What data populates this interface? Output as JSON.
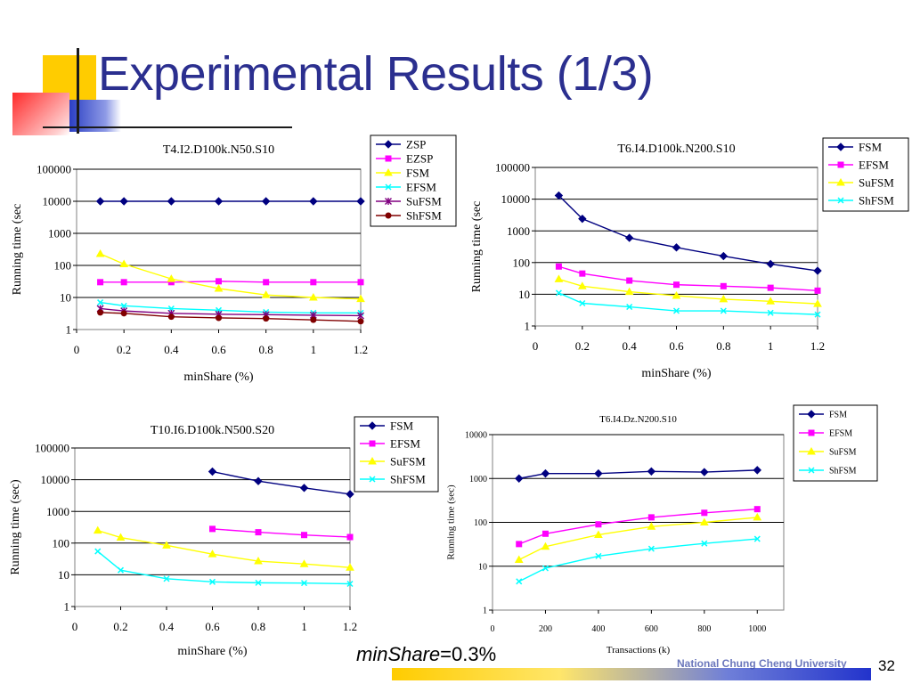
{
  "slide": {
    "title": "Experimental Results (1/3)",
    "caption_italic": "minShare",
    "caption_rest": "=0.3%",
    "page_number": "32",
    "footer_text": "National Chung Cheng University"
  },
  "colors": {
    "title": "#2b2f8f",
    "ZSP": "#000080",
    "EZSP": "#ff00ff",
    "FSM_yellow": "#ffff00",
    "EFSM_cyan": "#00ffff",
    "SuFSM": "#800080",
    "ShFSM": "#800000"
  },
  "chart_data": [
    {
      "type": "line",
      "title": "T4.I2.D100k.N50.S10",
      "xlabel": "minShare (%)",
      "ylabel": "Running time (sec",
      "yscale": "log",
      "xlim": [
        0,
        1.2
      ],
      "ylim": [
        1,
        100000
      ],
      "xticks": [
        "0",
        "0.2",
        "0.4",
        "0.6",
        "0.8",
        "1",
        "1.2"
      ],
      "yticks": [
        "1",
        "10",
        "100",
        "1000",
        "10000",
        "100000"
      ],
      "grid": "horizontal",
      "legend": "top-right",
      "x": [
        0.1,
        0.2,
        0.4,
        0.6,
        0.8,
        1.0,
        1.2
      ],
      "series": [
        {
          "name": "ZSP",
          "color": "#000080",
          "marker": "diamond",
          "values": [
            10000,
            10000,
            10000,
            10000,
            10000,
            10000,
            10000
          ]
        },
        {
          "name": "EZSP",
          "color": "#ff00ff",
          "marker": "square",
          "values": [
            30,
            30,
            30,
            32,
            30,
            30,
            30
          ]
        },
        {
          "name": "FSM",
          "color": "#ffff00",
          "marker": "triangle",
          "values": [
            230,
            110,
            38,
            19,
            12,
            10,
            9
          ]
        },
        {
          "name": "EFSM",
          "color": "#00ffff",
          "marker": "x",
          "values": [
            7,
            5.5,
            4.5,
            4,
            3.5,
            3.3,
            3.3
          ]
        },
        {
          "name": "SuFSM",
          "color": "#800080",
          "marker": "star",
          "values": [
            4.5,
            3.8,
            3.2,
            3,
            2.9,
            2.8,
            2.7
          ]
        },
        {
          "name": "ShFSM",
          "color": "#800000",
          "marker": "circle",
          "values": [
            3.4,
            3.2,
            2.5,
            2.3,
            2.2,
            2.0,
            1.8
          ]
        }
      ]
    },
    {
      "type": "line",
      "title": "T6.I4.D100k.N200.S10",
      "xlabel": "minShare (%)",
      "ylabel": "Running time (sec",
      "yscale": "log",
      "xlim": [
        0,
        1.2
      ],
      "ylim": [
        1,
        100000
      ],
      "xticks": [
        "0",
        "0.2",
        "0.4",
        "0.6",
        "0.8",
        "1",
        "1.2"
      ],
      "yticks": [
        "1",
        "10",
        "100",
        "1000",
        "10000",
        "100000"
      ],
      "grid": "horizontal",
      "legend": "top-right",
      "x": [
        0.1,
        0.2,
        0.4,
        0.6,
        0.8,
        1.0,
        1.2
      ],
      "series": [
        {
          "name": "FSM",
          "color": "#000080",
          "marker": "diamond",
          "values": [
            13000,
            2400,
            600,
            300,
            160,
            90,
            55
          ]
        },
        {
          "name": "EFSM",
          "color": "#ff00ff",
          "marker": "square",
          "values": [
            75,
            45,
            27,
            20,
            18,
            16,
            13
          ]
        },
        {
          "name": "SuFSM",
          "color": "#ffff00",
          "marker": "triangle",
          "values": [
            30,
            18,
            12,
            9,
            7,
            6,
            5
          ]
        },
        {
          "name": "ShFSM",
          "color": "#00ffff",
          "marker": "x",
          "values": [
            11,
            5.2,
            4,
            3,
            3,
            2.6,
            2.3
          ]
        }
      ]
    },
    {
      "type": "line",
      "title": "T10.I6.D100k.N500.S20",
      "xlabel": "minShare (%)",
      "ylabel": "Running time (sec)",
      "yscale": "log",
      "xlim": [
        0,
        1.2
      ],
      "ylim": [
        1,
        100000
      ],
      "xticks": [
        "0",
        "0.2",
        "0.4",
        "0.6",
        "0.8",
        "1",
        "1.2"
      ],
      "yticks": [
        "1",
        "10",
        "100",
        "1000",
        "10000",
        "100000"
      ],
      "grid": "horizontal",
      "legend": "top-right",
      "x": [
        0.1,
        0.2,
        0.4,
        0.6,
        0.8,
        1.0,
        1.2
      ],
      "series": [
        {
          "name": "FSM",
          "color": "#000080",
          "marker": "diamond",
          "values": [
            null,
            null,
            null,
            18000,
            9000,
            5500,
            3500
          ]
        },
        {
          "name": "EFSM",
          "color": "#ff00ff",
          "marker": "square",
          "values": [
            null,
            null,
            null,
            280,
            220,
            180,
            155
          ]
        },
        {
          "name": "SuFSM",
          "color": "#ffff00",
          "marker": "triangle",
          "values": [
            250,
            150,
            85,
            45,
            27,
            22,
            17
          ]
        },
        {
          "name": "ShFSM",
          "color": "#00ffff",
          "marker": "x",
          "values": [
            55,
            14,
            7.5,
            6,
            5.6,
            5.5,
            5.2
          ]
        }
      ]
    },
    {
      "type": "line",
      "title": "T6.I4.Dz.N200.S10",
      "xlabel": "Transactions (k)",
      "ylabel": "Running time (sec)",
      "yscale": "log",
      "xlim": [
        0,
        1100
      ],
      "ylim": [
        1,
        10000
      ],
      "xticks": [
        "0",
        "200",
        "400",
        "600",
        "800",
        "1000"
      ],
      "yticks": [
        "1",
        "10",
        "100",
        "1000",
        "10000"
      ],
      "grid": "horizontal",
      "legend": "top-right",
      "x": [
        100,
        200,
        400,
        600,
        800,
        1000
      ],
      "series": [
        {
          "name": "FSM",
          "color": "#000080",
          "marker": "diamond",
          "values": [
            1000,
            1300,
            1300,
            1450,
            1400,
            1550
          ]
        },
        {
          "name": "EFSM",
          "color": "#ff00ff",
          "marker": "square",
          "values": [
            32,
            55,
            90,
            130,
            165,
            200
          ]
        },
        {
          "name": "SuFSM",
          "color": "#ffff00",
          "marker": "triangle",
          "values": [
            14,
            28,
            52,
            80,
            100,
            130
          ]
        },
        {
          "name": "ShFSM",
          "color": "#00ffff",
          "marker": "x",
          "values": [
            4.5,
            9,
            17,
            25,
            33,
            42
          ]
        }
      ]
    }
  ]
}
